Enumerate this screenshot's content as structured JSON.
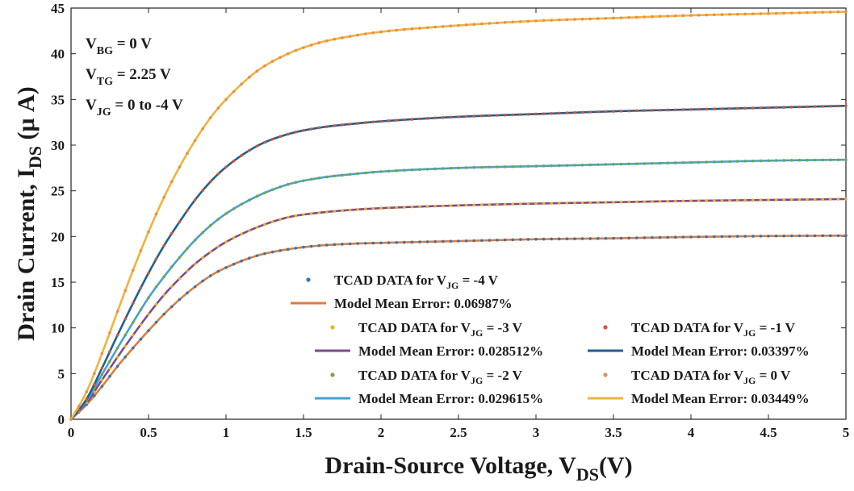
{
  "chart_data": {
    "type": "line",
    "xlabel": {
      "main": "Drain-Source Voltage, V",
      "sub": "DS",
      "unit": "(V)"
    },
    "ylabel": {
      "main": "Drain Current, I",
      "sub": "DS",
      "unit": " (μ A)"
    },
    "xlim": [
      0,
      5
    ],
    "ylim": [
      0,
      45
    ],
    "x_ticks": [
      {
        "value": 0,
        "label": "0"
      },
      {
        "value": 0.5,
        "label": "0.5"
      },
      {
        "value": 1,
        "label": "1"
      },
      {
        "value": 1.5,
        "label": "1.5"
      },
      {
        "value": 2,
        "label": "2"
      },
      {
        "value": 2.5,
        "label": "2.5"
      },
      {
        "value": 3,
        "label": "3"
      },
      {
        "value": 3.5,
        "label": "3.5"
      },
      {
        "value": 4,
        "label": "4"
      },
      {
        "value": 4.5,
        "label": "4.5"
      },
      {
        "value": 5,
        "label": "5"
      }
    ],
    "y_ticks": [
      {
        "value": 0,
        "label": "0"
      },
      {
        "value": 5,
        "label": "5"
      },
      {
        "value": 10,
        "label": "10"
      },
      {
        "value": 15,
        "label": "15"
      },
      {
        "value": 20,
        "label": "20"
      },
      {
        "value": 25,
        "label": "25"
      },
      {
        "value": 30,
        "label": "30"
      },
      {
        "value": 35,
        "label": "35"
      },
      {
        "value": 40,
        "label": "40"
      },
      {
        "value": 45,
        "label": "45"
      }
    ],
    "grid": false,
    "annotations": [
      {
        "main": "V",
        "sub": "BG",
        "rest": " = 0 V"
      },
      {
        "main": "V",
        "sub": "TG",
        "rest": " = 2.25 V"
      },
      {
        "main": "V",
        "sub": "JG",
        "rest": " = 0 to -4 V"
      }
    ],
    "series": [
      {
        "vjg": "-4 V",
        "line_color": "#e07a3c",
        "marker_color": "#2f78b4",
        "x": [
          0,
          0.1,
          0.2,
          0.3,
          0.4,
          0.5,
          0.6,
          0.7,
          0.8,
          0.9,
          1.0,
          1.2,
          1.4,
          1.6,
          1.8,
          2.0,
          2.5,
          3.0,
          3.5,
          4.0,
          4.5,
          5.0
        ],
        "y": [
          0,
          1.6,
          3.6,
          5.8,
          7.8,
          9.7,
          11.5,
          13.1,
          14.5,
          15.7,
          16.6,
          17.9,
          18.6,
          19.0,
          19.2,
          19.3,
          19.5,
          19.7,
          19.8,
          19.95,
          20.05,
          20.1
        ]
      },
      {
        "vjg": "-3 V",
        "line_color": "#7e4b8c",
        "marker_color": "#e8b129",
        "x": [
          0,
          0.1,
          0.2,
          0.3,
          0.4,
          0.5,
          0.6,
          0.7,
          0.8,
          0.9,
          1.0,
          1.2,
          1.4,
          1.6,
          1.8,
          2.0,
          2.5,
          3.0,
          3.5,
          4.0,
          4.5,
          5.0
        ],
        "y": [
          0,
          1.8,
          4.3,
          6.8,
          9.2,
          11.5,
          13.6,
          15.4,
          17.0,
          18.3,
          19.4,
          21.0,
          22.1,
          22.6,
          22.9,
          23.1,
          23.4,
          23.6,
          23.75,
          23.9,
          24.0,
          24.1
        ]
      },
      {
        "vjg": "-2 V",
        "line_color": "#43a2d6",
        "marker_color": "#7ea33a",
        "x": [
          0,
          0.1,
          0.2,
          0.3,
          0.4,
          0.5,
          0.6,
          0.7,
          0.8,
          0.9,
          1.0,
          1.2,
          1.4,
          1.6,
          1.8,
          2.0,
          2.5,
          3.0,
          3.5,
          4.0,
          4.5,
          5.0
        ],
        "y": [
          0,
          2.0,
          4.9,
          7.8,
          10.6,
          13.3,
          15.6,
          17.7,
          19.6,
          21.2,
          22.5,
          24.4,
          25.7,
          26.4,
          26.8,
          27.1,
          27.5,
          27.7,
          27.9,
          28.1,
          28.3,
          28.4
        ]
      },
      {
        "vjg": "-1 V",
        "line_color": "#1f5f96",
        "marker_color": "#d9542b",
        "x": [
          0,
          0.1,
          0.2,
          0.3,
          0.4,
          0.5,
          0.6,
          0.7,
          0.8,
          0.9,
          1.0,
          1.2,
          1.4,
          1.6,
          1.8,
          2.0,
          2.5,
          3.0,
          3.5,
          4.0,
          4.5,
          5.0
        ],
        "y": [
          0,
          2.2,
          5.6,
          9.2,
          12.7,
          16.0,
          19.0,
          21.6,
          24.0,
          26.0,
          27.6,
          29.9,
          31.2,
          31.9,
          32.3,
          32.6,
          33.1,
          33.4,
          33.7,
          33.9,
          34.1,
          34.3
        ]
      },
      {
        "vjg": "0 V",
        "line_color": "#f0b33b",
        "marker_color": "#e98f4a",
        "x": [
          0,
          0.1,
          0.2,
          0.3,
          0.4,
          0.5,
          0.6,
          0.7,
          0.8,
          0.9,
          1.0,
          1.2,
          1.4,
          1.6,
          1.8,
          2.0,
          2.5,
          3.0,
          3.5,
          4.0,
          4.5,
          5.0
        ],
        "y": [
          0,
          3.0,
          7.2,
          11.8,
          16.3,
          20.5,
          24.3,
          27.6,
          30.5,
          33.0,
          35.0,
          38.1,
          40.0,
          41.2,
          41.9,
          42.4,
          43.1,
          43.6,
          43.9,
          44.2,
          44.4,
          44.6
        ]
      }
    ],
    "legend": [
      {
        "kind": "marker",
        "color": "#2f78b4",
        "pre": "TCAD DATA for  V",
        "sub": "JG",
        "post": " = -4 V"
      },
      {
        "kind": "line",
        "color": "#e07a3c",
        "text": "Model  Mean  Error: 0.06987%"
      },
      {
        "kind": "marker",
        "color": "#e8b129",
        "pre": "TCAD DATA for  V",
        "sub": "JG",
        "post": " = -3 V"
      },
      {
        "kind": "line",
        "color": "#7e4b8c",
        "text": "Model Mean  Error: 0.028512%"
      },
      {
        "kind": "marker",
        "color": "#7ea33a",
        "pre": "TCAD DATA for  V",
        "sub": "JG",
        "post": " = -2 V"
      },
      {
        "kind": "line",
        "color": "#43a2d6",
        "text": "Model Mean  Error: 0.029615%"
      },
      {
        "kind": "marker",
        "color": "#d9542b",
        "pre": "TCAD DATA for  V",
        "sub": "JG",
        "post": " = -1 V"
      },
      {
        "kind": "line",
        "color": "#1f5f96",
        "text": "Model Mean  Error: 0.03397%"
      },
      {
        "kind": "marker",
        "color": "#e98f4a",
        "pre": "TCAD DATA for  V",
        "sub": "JG",
        "post": " = 0 V"
      },
      {
        "kind": "line",
        "color": "#f0b33b",
        "text": "Model  Mean  Error: 0.03449%"
      }
    ]
  }
}
